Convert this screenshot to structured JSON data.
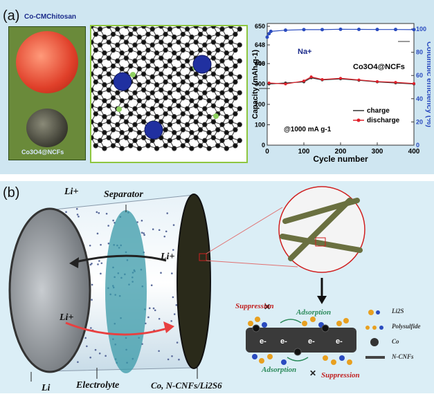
{
  "panel_a": {
    "label": "(a)",
    "photo_top_label": "Co-CMChitosan",
    "photo_bottom_label": "Co3O4@NCFs",
    "chart_data": {
      "type": "scatter",
      "xlabel": "Cycle number",
      "ylabel_left": "Capacity (mAh g-1)",
      "ylabel_right": "Columbic efficiency (%)",
      "x_ticks": [
        0,
        100,
        200,
        300,
        400
      ],
      "y_left_ticks": [
        "0",
        "100",
        "200",
        "300",
        "400",
        "646",
        "648",
        "650"
      ],
      "y_right_ticks": [
        0,
        20,
        40,
        60,
        80,
        100
      ],
      "xlim": [
        0,
        400
      ],
      "annotations": [
        "Na+",
        "Co3O4@NCFs",
        "@1000 mA g-1"
      ],
      "legend": [
        "charge",
        "discharge"
      ],
      "series": [
        {
          "name": "charge",
          "color": "#333333",
          "x": [
            5,
            50,
            100,
            120,
            150,
            200,
            250,
            300,
            350,
            400
          ],
          "y": [
            300,
            305,
            310,
            330,
            320,
            325,
            318,
            310,
            305,
            300
          ]
        },
        {
          "name": "discharge",
          "color": "#e0202a",
          "x": [
            5,
            50,
            100,
            120,
            150,
            200,
            250,
            300,
            350,
            400
          ],
          "y": [
            305,
            300,
            315,
            335,
            322,
            328,
            320,
            312,
            308,
            302
          ]
        },
        {
          "name": "efficiency",
          "color": "#2a4bbf",
          "x": [
            0,
            5,
            10,
            50,
            100,
            150,
            200,
            250,
            300,
            350,
            400
          ],
          "y": [
            93,
            96,
            98,
            99,
            99.5,
            99.5,
            99.8,
            99.7,
            99.6,
            99.6,
            99.5
          ]
        }
      ]
    }
  },
  "panel_b": {
    "label": "(b)",
    "labels": {
      "li_plus_top": "Li+",
      "separator": "Separator",
      "li_plus_right": "Li+",
      "li_plus_left": "Li+",
      "li": "Li",
      "electrolyte": "Electrolyte",
      "cathode": "Co, N-CNFs/Li2S6"
    },
    "schematic": {
      "suppression": "Suppression",
      "adsorption": "Adsorption",
      "electron": "e-",
      "legend": [
        "Li2S",
        "Polysulfide",
        "Co",
        "N-CNFs"
      ]
    }
  }
}
